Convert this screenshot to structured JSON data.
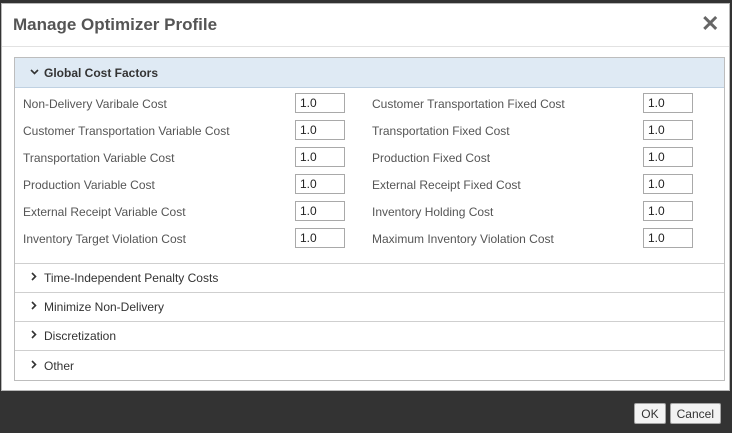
{
  "dialog": {
    "title": "Manage Optimizer Profile",
    "close_glyph": "✕"
  },
  "sections": {
    "global": {
      "label": "Global Cost Factors",
      "left": [
        {
          "label": "Non-Delivery Varibale Cost",
          "value": "1.0"
        },
        {
          "label": "Customer Transportation Variable Cost",
          "value": "1.0"
        },
        {
          "label": "Transportation Variable Cost",
          "value": "1.0"
        },
        {
          "label": "Production Variable Cost",
          "value": "1.0"
        },
        {
          "label": "External Receipt Variable Cost",
          "value": "1.0"
        },
        {
          "label": "Inventory Target Violation Cost",
          "value": "1.0"
        }
      ],
      "right": [
        {
          "label": "Customer Transportation Fixed Cost",
          "value": "1.0"
        },
        {
          "label": "Transportation Fixed Cost",
          "value": "1.0"
        },
        {
          "label": "Production Fixed Cost",
          "value": "1.0"
        },
        {
          "label": "External Receipt Fixed Cost",
          "value": "1.0"
        },
        {
          "label": "Inventory Holding Cost",
          "value": "1.0"
        },
        {
          "label": "Maximum Inventory Violation Cost",
          "value": "1.0"
        }
      ]
    },
    "collapsed": [
      {
        "label": "Time-Independent Penalty Costs"
      },
      {
        "label": "Minimize Non-Delivery"
      },
      {
        "label": "Discretization"
      },
      {
        "label": "Other"
      }
    ]
  },
  "footer": {
    "ok_label": "OK",
    "cancel_label": "Cancel"
  }
}
